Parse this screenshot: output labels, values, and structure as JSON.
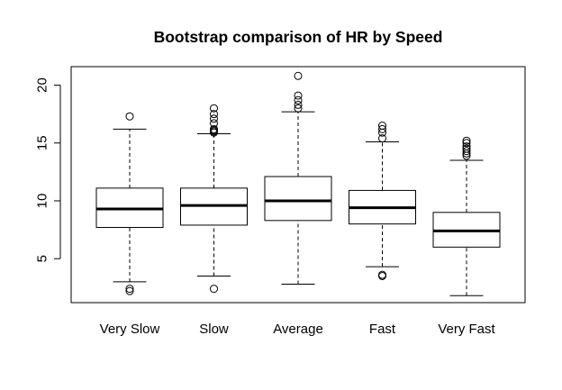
{
  "chart_data": {
    "type": "boxplot",
    "title": "Bootstrap comparison of HR by Speed",
    "xlabel": "",
    "ylabel": "",
    "ylim": [
      1.2,
      21.6
    ],
    "yticks": [
      5,
      10,
      15,
      20
    ],
    "ytick_labels": [
      "5",
      "10",
      "15",
      "20"
    ],
    "grid": false,
    "legend": "none",
    "categories": [
      "Very Slow",
      "Slow",
      "Average",
      "Fast",
      "Very Fast"
    ],
    "boxes": [
      {
        "category": "Very Slow",
        "whisker_low": 3.0,
        "q1": 7.7,
        "median": 9.3,
        "q3": 11.1,
        "whisker_high": 16.2,
        "outliers": [
          2.2,
          2.4,
          17.3
        ]
      },
      {
        "category": "Slow",
        "whisker_low": 3.5,
        "q1": 7.9,
        "median": 9.6,
        "q3": 11.1,
        "whisker_high": 15.8,
        "outliers": [
          2.4,
          15.9,
          16.0,
          16.1,
          16.2,
          16.7,
          17.1,
          17.5,
          18.0
        ]
      },
      {
        "category": "Average",
        "whisker_low": 2.8,
        "q1": 8.3,
        "median": 10.0,
        "q3": 12.1,
        "whisker_high": 17.7,
        "outliers": [
          18.0,
          18.3,
          18.7,
          19.1,
          20.8
        ]
      },
      {
        "category": "Fast",
        "whisker_low": 4.3,
        "q1": 8.0,
        "median": 9.4,
        "q3": 10.9,
        "whisker_high": 15.1,
        "outliers": [
          3.5,
          3.6,
          15.4,
          15.9,
          16.2,
          16.5
        ]
      },
      {
        "category": "Very Fast",
        "whisker_low": 1.8,
        "q1": 6.0,
        "median": 7.4,
        "q3": 9.0,
        "whisker_high": 13.5,
        "outliers": [
          13.9,
          14.1,
          14.3,
          14.5,
          14.7,
          15.0,
          15.2
        ]
      }
    ]
  }
}
